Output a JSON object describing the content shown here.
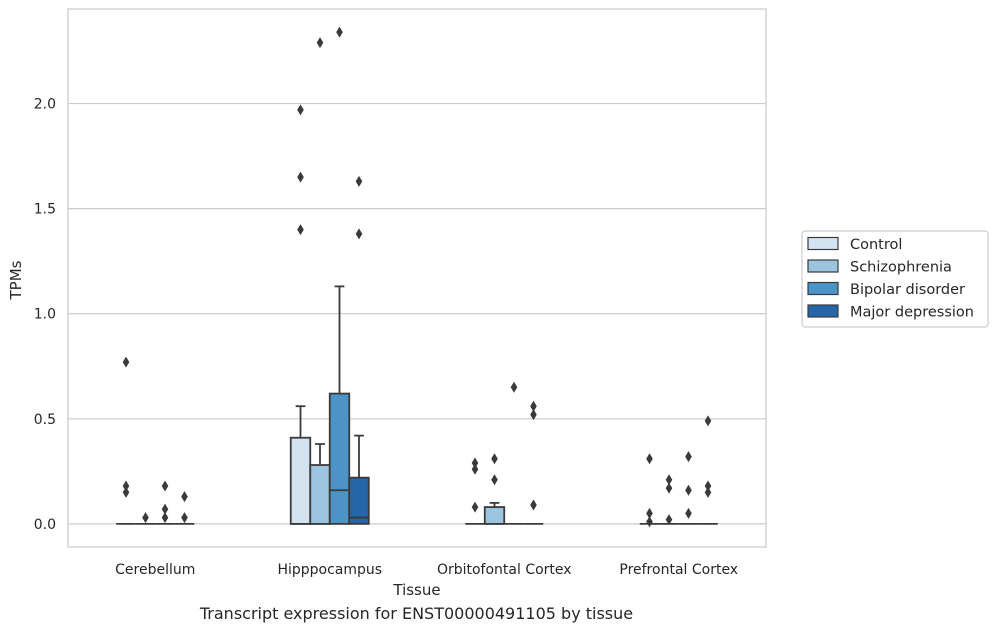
{
  "caption": "Transcript expression for ENST00000491105 by tissue",
  "colors": {
    "Control": "#d4e3f1",
    "Schizophrenia": "#9bc5df",
    "Bipolar disorder": "#4d94c6",
    "Major depression": "#2566a8",
    "box_edge": "#3a3a3a",
    "grid": "#cccccc",
    "frame": "#cccccc"
  },
  "chart_data": {
    "type": "boxplot",
    "title": "",
    "xlabel": "Tissue",
    "ylabel": "TPMs",
    "ylim": [
      -0.11,
      2.45
    ],
    "yticks": [
      0.0,
      0.5,
      1.0,
      1.5,
      2.0
    ],
    "ytick_labels": [
      "0.0",
      "0.5",
      "1.0",
      "1.5",
      "2.0"
    ],
    "grid": true,
    "legend_position": "right",
    "categories": [
      "Cerebellum",
      "Hipppocampus",
      "Orbitofontal Cortex",
      "Prefrontal Cortex"
    ],
    "series": [
      {
        "name": "Control",
        "boxes": [
          {
            "q1": 0,
            "median": 0,
            "q3": 0,
            "whisker_low": 0,
            "whisker_high": 0,
            "outliers": [
              0.18,
              0.15,
              0.77
            ]
          },
          {
            "q1": 0,
            "median": 0,
            "q3": 0.41,
            "whisker_low": 0,
            "whisker_high": 0.56,
            "outliers": [
              1.97,
              1.65,
              1.4
            ]
          },
          {
            "q1": 0,
            "median": 0,
            "q3": 0,
            "whisker_low": 0,
            "whisker_high": 0,
            "outliers": [
              0.29,
              0.26,
              0.08
            ]
          },
          {
            "q1": 0,
            "median": 0,
            "q3": 0,
            "whisker_low": 0,
            "whisker_high": 0,
            "outliers": [
              0.31,
              0.05,
              0.01
            ]
          }
        ]
      },
      {
        "name": "Schizophrenia",
        "boxes": [
          {
            "q1": 0,
            "median": 0,
            "q3": 0,
            "whisker_low": 0,
            "whisker_high": 0,
            "outliers": [
              0.03
            ]
          },
          {
            "q1": 0,
            "median": 0,
            "q3": 0.28,
            "whisker_low": 0,
            "whisker_high": 0.38,
            "outliers": [
              2.29
            ]
          },
          {
            "q1": 0,
            "median": 0,
            "q3": 0.08,
            "whisker_low": 0,
            "whisker_high": 0.1,
            "outliers": [
              0.31,
              0.21
            ]
          },
          {
            "q1": 0,
            "median": 0,
            "q3": 0,
            "whisker_low": 0,
            "whisker_high": 0,
            "outliers": [
              0.21,
              0.17,
              0.02
            ]
          }
        ]
      },
      {
        "name": "Bipolar disorder",
        "boxes": [
          {
            "q1": 0,
            "median": 0,
            "q3": 0,
            "whisker_low": 0,
            "whisker_high": 0,
            "outliers": [
              0.18,
              0.07,
              0.03
            ]
          },
          {
            "q1": 0,
            "median": 0.16,
            "q3": 0.62,
            "whisker_low": 0,
            "whisker_high": 1.13,
            "outliers": [
              2.34
            ]
          },
          {
            "q1": 0,
            "median": 0,
            "q3": 0,
            "whisker_low": 0,
            "whisker_high": 0,
            "outliers": [
              0.65
            ]
          },
          {
            "q1": 0,
            "median": 0,
            "q3": 0,
            "whisker_low": 0,
            "whisker_high": 0,
            "outliers": [
              0.32,
              0.16,
              0.05
            ]
          }
        ]
      },
      {
        "name": "Major depression",
        "boxes": [
          {
            "q1": 0,
            "median": 0,
            "q3": 0,
            "whisker_low": 0,
            "whisker_high": 0,
            "outliers": [
              0.13,
              0.03
            ]
          },
          {
            "q1": 0,
            "median": 0.03,
            "q3": 0.22,
            "whisker_low": 0,
            "whisker_high": 0.42,
            "outliers": [
              1.63,
              1.38
            ]
          },
          {
            "q1": 0,
            "median": 0,
            "q3": 0,
            "whisker_low": 0,
            "whisker_high": 0,
            "outliers": [
              0.56,
              0.52,
              0.09
            ]
          },
          {
            "q1": 0,
            "median": 0,
            "q3": 0,
            "whisker_low": 0,
            "whisker_high": 0,
            "outliers": [
              0.49,
              0.18,
              0.15
            ]
          }
        ]
      }
    ]
  }
}
